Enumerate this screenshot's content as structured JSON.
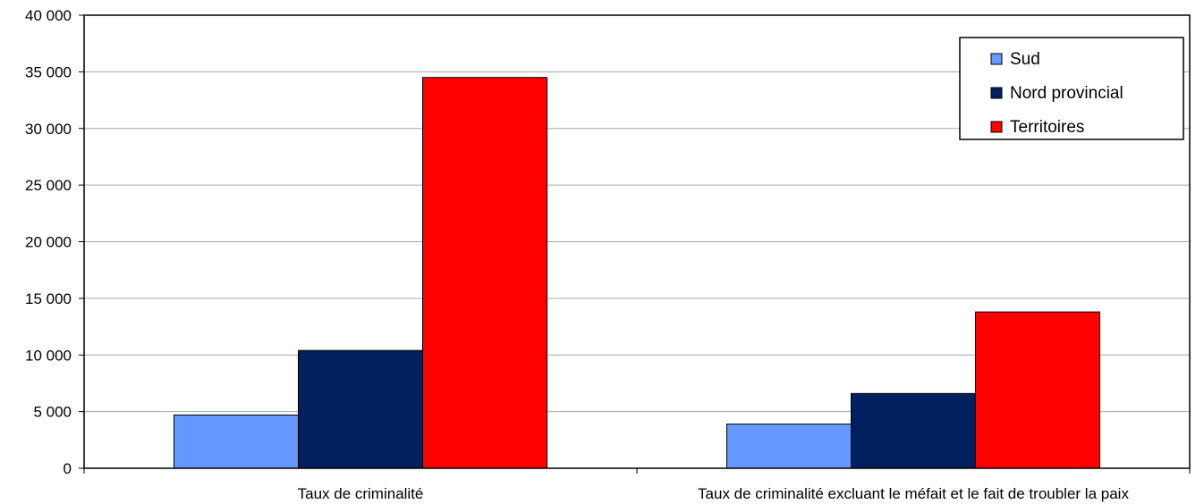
{
  "chart_data": {
    "type": "bar",
    "categories": [
      "Taux de criminalité",
      "Taux de criminalité excluant le méfait et le fait de troubler la paix"
    ],
    "series": [
      {
        "name": "Sud",
        "values": [
          4700,
          3900
        ],
        "color": "#6699ff"
      },
      {
        "name": "Nord provincial",
        "values": [
          10400,
          6600
        ],
        "color": "#002060"
      },
      {
        "name": "Territoires",
        "values": [
          34500,
          13800
        ],
        "color": "#ff0000"
      }
    ],
    "y_ticks": [
      "0",
      "5 000",
      "10 000",
      "15 000",
      "20 000",
      "25 000",
      "30 000",
      "35 000",
      "40 000"
    ],
    "ylim": [
      0,
      40000
    ],
    "grid": true,
    "legend_position": "top-right",
    "title": "",
    "xlabel": "",
    "ylabel": ""
  }
}
